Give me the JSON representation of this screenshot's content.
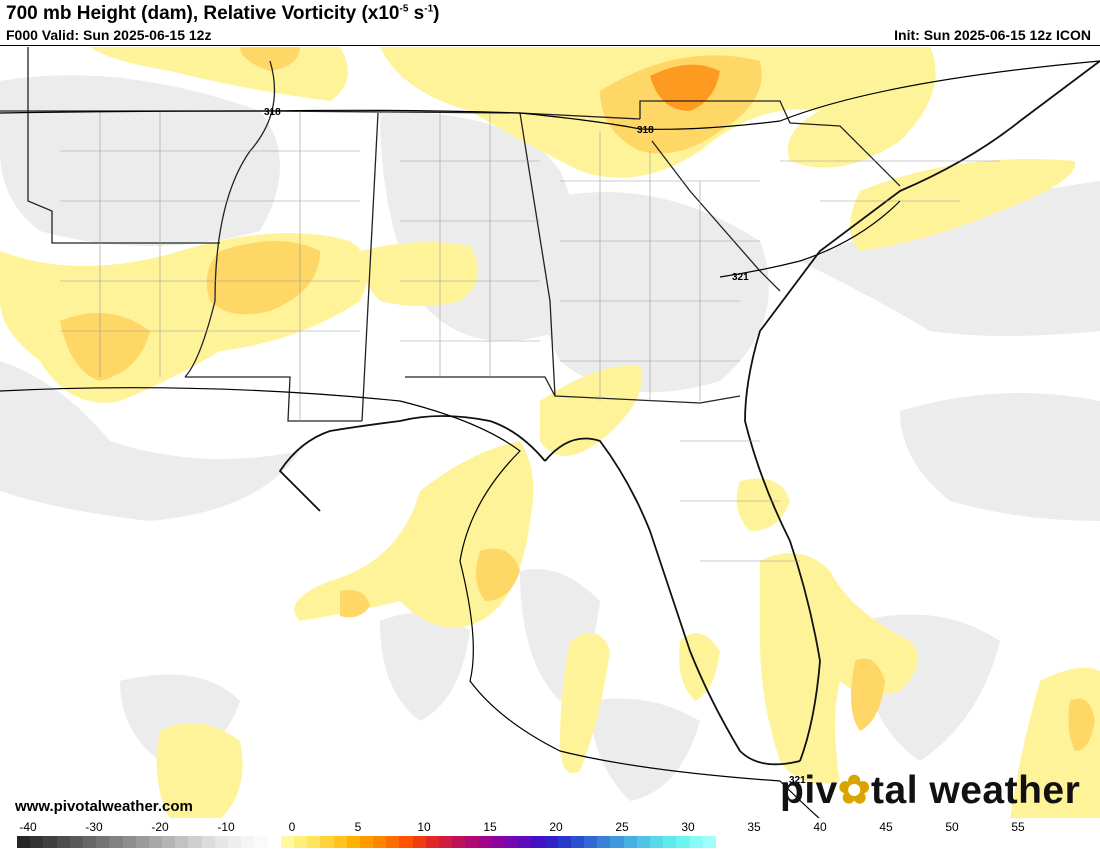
{
  "header": {
    "title_main": "700 mb Height (dam), Relative Vorticity (x10",
    "title_exp1": "-5",
    "title_mid": " s",
    "title_exp2": "-1",
    "title_end": ")",
    "valid": "F000 Valid: Sun 2025-06-15 12z",
    "init": "Init: Sun 2025-06-15 12z ICON"
  },
  "contours": {
    "label_318_a": "318",
    "label_318_b": "318",
    "label_321_a": "321",
    "label_321_b": "321"
  },
  "footer": {
    "website": "www.pivotalweather.com",
    "brand_left": "piv",
    "brand_gear": "✿",
    "brand_right": "tal weather"
  },
  "colorbar": {
    "ticks": [
      "-40",
      "-30",
      "-20",
      "-10",
      "0",
      "5",
      "10",
      "15",
      "20",
      "25",
      "30",
      "35",
      "40",
      "45",
      "50",
      "55"
    ],
    "colors": [
      "#262626",
      "#333333",
      "#404040",
      "#4d4d4d",
      "#5a5a5a",
      "#676767",
      "#747474",
      "#818181",
      "#8e8e8e",
      "#9b9b9b",
      "#a8a8a8",
      "#b5b5b5",
      "#c2c2c2",
      "#cfcfcf",
      "#dcdcdc",
      "#e6e6e6",
      "#eeeeee",
      "#f5f5f5",
      "#fafafa",
      "#ffffff",
      "#fffaa0",
      "#ffef7a",
      "#ffe35a",
      "#ffd23c",
      "#ffc21e",
      "#ffb000",
      "#ff9a00",
      "#ff8400",
      "#ff6c00",
      "#ff5200",
      "#f03c10",
      "#e02828",
      "#d01c40",
      "#c0105a",
      "#b00874",
      "#a0048c",
      "#8c04a0",
      "#7408b0",
      "#5c0cbc",
      "#4410c4",
      "#3020c8",
      "#2838cc",
      "#2850d0",
      "#3068d4",
      "#3880d8",
      "#4098dc",
      "#48b0e0",
      "#50c4e4",
      "#58d8e8",
      "#60e8ec",
      "#70f4f0",
      "#88fcf4",
      "#a0fff8"
    ]
  }
}
